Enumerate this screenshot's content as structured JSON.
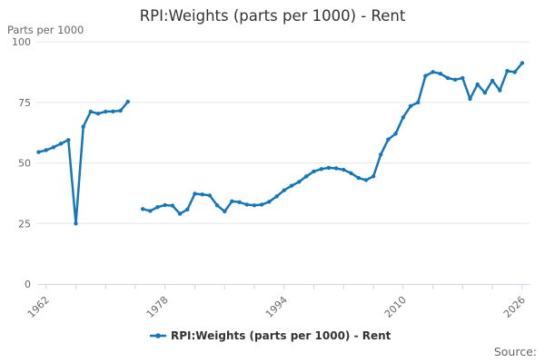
{
  "chart": {
    "title": "RPI:Weights (parts per 1000) - Rent",
    "unit_label": "Parts per 1000",
    "legend_label": "RPI:Weights (parts per 1000) - Rent",
    "source_label": "Source:",
    "colors": {
      "line": "#1577B7",
      "axis": "#ccd6eb",
      "grid": "#e6e6e6",
      "text_muted": "#666666",
      "text_dark": "#333333"
    }
  },
  "chart_data": {
    "type": "line",
    "title": "RPI:Weights (parts per 1000) - Rent",
    "xlabel": "",
    "ylabel": "Parts per 1000",
    "ylim": [
      0,
      100
    ],
    "y_ticks": [
      0,
      25,
      50,
      75,
      100
    ],
    "xlim": [
      1960.9,
      2026.9
    ],
    "x_minor_tick_step_years": 4,
    "x_labeled_ticks": [
      1962,
      1978,
      1994,
      2010,
      2026
    ],
    "grid": "horizontal",
    "legend_position": "bottom",
    "marker": "dot",
    "series": [
      {
        "name": "RPI:Weights (parts per 1000) - Rent",
        "color": "#1577B7",
        "gap_years": [
          1974
        ],
        "segments": [
          {
            "start_year": 1961,
            "values": [
              54.5,
              55.3,
              56.5,
              58,
              59.5,
              25,
              65,
              71.2,
              70.4,
              71.2,
              71.3,
              71.6,
              75.3
            ]
          },
          {
            "start_year": 1975,
            "values": [
              31,
              30.2,
              31.8,
              32.6,
              32.4,
              29,
              30.8,
              37.3,
              37,
              36.6,
              32.5,
              30,
              34.2,
              33.8,
              32.8,
              32.5,
              32.8,
              34,
              36.2,
              38.7,
              40.6,
              42.2,
              44.5,
              46.5,
              47.5,
              48,
              47.8,
              47.2,
              45.8,
              43.8,
              42.9,
              44.5,
              53.5,
              59.7,
              62.1,
              68.8,
              73.5,
              75,
              86,
              87.6,
              86.9,
              85.1,
              84.4,
              85.1,
              76.5,
              82.5,
              79,
              84,
              80,
              88,
              87.5,
              91.3
            ]
          }
        ]
      }
    ]
  }
}
